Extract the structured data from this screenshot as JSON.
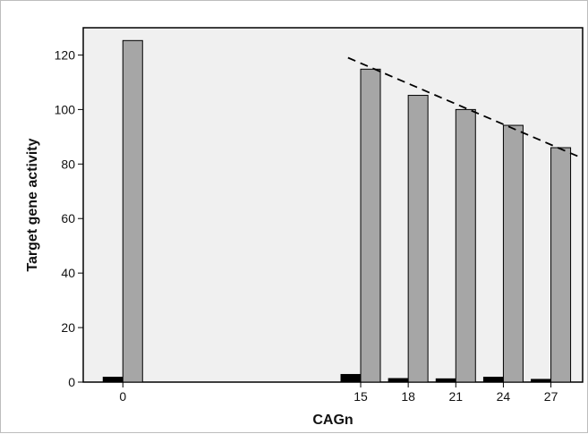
{
  "chart_data": {
    "type": "bar",
    "title": "",
    "xlabel": "CAGn",
    "ylabel": "Target gene activity",
    "categories": [
      "0",
      "15",
      "18",
      "21",
      "24",
      "27"
    ],
    "x": [
      0,
      15,
      18,
      21,
      24,
      27
    ],
    "xlim": [
      -2.5,
      29
    ],
    "ylim": [
      0,
      130
    ],
    "yticks": [
      0,
      20,
      40,
      60,
      80,
      100,
      120
    ],
    "grid": false,
    "legend": "none",
    "series": [
      {
        "values": [
          1.8,
          2.8,
          1.3,
          1.2,
          1.8,
          1.0
        ],
        "color": "#000000"
      },
      {
        "values": [
          125.3,
          114.8,
          105.2,
          100.0,
          94.2,
          86.0
        ],
        "color": "#a6a6a6"
      }
    ],
    "trendline": {
      "style": "dashed",
      "color": "#000000",
      "x": [
        14.2,
        28.8
      ],
      "y": [
        119,
        82.6
      ]
    },
    "plot_background": "#f0f0f0"
  }
}
